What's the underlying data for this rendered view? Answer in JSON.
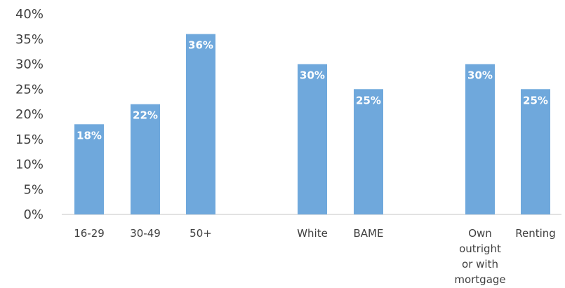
{
  "chart_data": {
    "type": "bar",
    "categories": [
      "16-29",
      "30-49",
      "50+",
      "White",
      "BAME",
      "Own outright or with mortgage",
      "Renting"
    ],
    "category_label_lines": [
      [
        "16-29"
      ],
      [
        "30-49"
      ],
      [
        "50+"
      ],
      [
        "White"
      ],
      [
        "BAME"
      ],
      [
        "Own",
        "outright",
        "or with",
        "mortgage"
      ],
      [
        "Renting"
      ]
    ],
    "groups": [
      {
        "categories": [
          "16-29",
          "30-49",
          "50+"
        ]
      },
      {
        "categories": [
          "White",
          "BAME"
        ]
      },
      {
        "categories": [
          "Own outright or with mortgage",
          "Renting"
        ]
      }
    ],
    "values": [
      18,
      22,
      36,
      30,
      25,
      30,
      25
    ],
    "data_labels": [
      "18%",
      "22%",
      "36%",
      "30%",
      "25%",
      "30%",
      "25%"
    ],
    "y_ticks": [
      0,
      5,
      10,
      15,
      20,
      25,
      30,
      35,
      40
    ],
    "y_tick_labels": [
      "0%",
      "5%",
      "10%",
      "15%",
      "20%",
      "25%",
      "30%",
      "35%",
      "40%"
    ],
    "ylim": [
      0,
      40
    ],
    "title": "",
    "xlabel": "",
    "ylabel": "",
    "grid": false,
    "legend": "none",
    "bar_color": "#6fa8dc",
    "axis_color": "#d9d9d9",
    "text_color": "#404040"
  }
}
